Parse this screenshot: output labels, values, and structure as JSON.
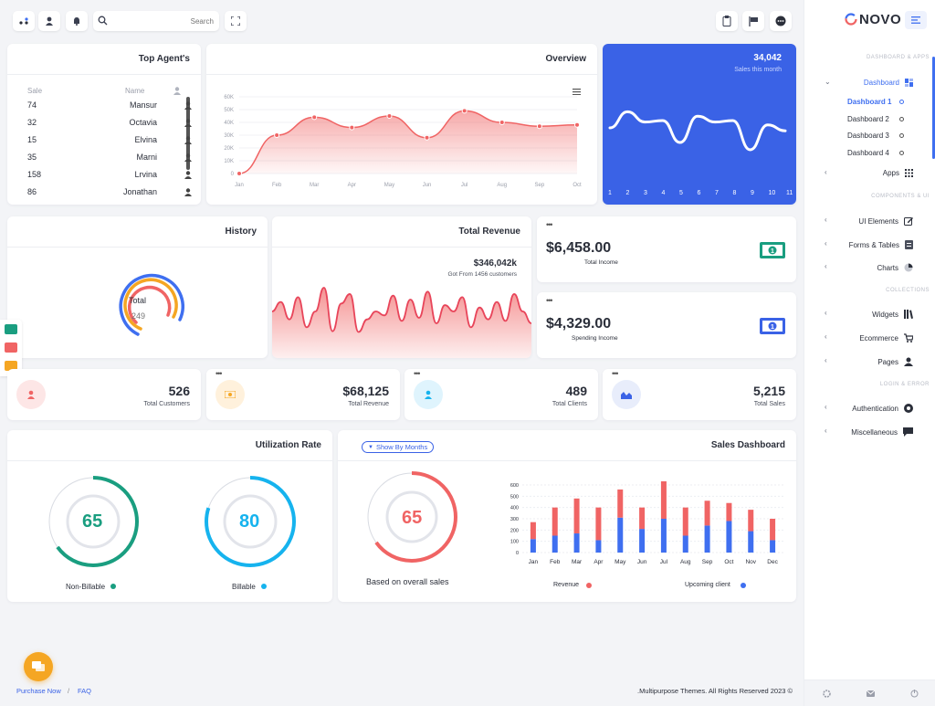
{
  "topbar": {
    "search_placeholder": "Search"
  },
  "brand": {
    "name": "NOVO"
  },
  "sidebar": {
    "groups": [
      "DASHBOARD & APPS",
      "COMPONENTS & UI",
      "COLLECTIONS",
      "LOGIN & ERROR"
    ],
    "dashboard": "Dashboard",
    "sub": [
      "Dashboard 1",
      "Dashboard 2",
      "Dashboard 3",
      "Dashboard 4"
    ],
    "items": [
      "Apps",
      "UI Elements",
      "Forms & Tables",
      "Charts",
      "Widgets",
      "Ecommerce",
      "Pages",
      "Authentication",
      "Miscellaneous"
    ]
  },
  "top_agents": {
    "title": "Top Agent's",
    "col_sale": "Sale",
    "col_name": "Name",
    "rows": [
      {
        "sale": "74",
        "name": "Mansur"
      },
      {
        "sale": "32",
        "name": "Octavia"
      },
      {
        "sale": "15",
        "name": "Elvina"
      },
      {
        "sale": "35",
        "name": "Marni"
      },
      {
        "sale": "158",
        "name": "Lrvina"
      },
      {
        "sale": "86",
        "name": "Jonathan"
      }
    ]
  },
  "overview": {
    "title": "Overview",
    "yticks": [
      "60K",
      "50K",
      "40K",
      "30K",
      "20K",
      "10K",
      "0"
    ],
    "months": [
      "Jan",
      "Feb",
      "Mar",
      "Apr",
      "May",
      "Jun",
      "Jul",
      "Aug",
      "Sep",
      "Oct"
    ]
  },
  "sales_month": {
    "value": "34,042",
    "label": "Sales this month",
    "xticks": [
      "1",
      "2",
      "3",
      "4",
      "5",
      "6",
      "7",
      "8",
      "9",
      "10",
      "11"
    ]
  },
  "history": {
    "title": "History",
    "center_label": "Total",
    "center_value": "249"
  },
  "total_revenue": {
    "title": "Total Revenue",
    "value": "$346,042k",
    "sub": "Got From 1456 customers"
  },
  "income": {
    "value": "$6,458.00",
    "label": "Total Income"
  },
  "spending": {
    "value": "$4,329.00",
    "label": "Spending Income"
  },
  "stats": [
    {
      "value": "526",
      "label": "Total Customers"
    },
    {
      "value": "$68,125",
      "label": "Total Revenue"
    },
    {
      "value": "489",
      "label": "Total Clients"
    },
    {
      "value": "5,215",
      "label": "Total Sales"
    }
  ],
  "utilization": {
    "title": "Utilization Rate",
    "a_value": "65",
    "a_label": "Non-Billable",
    "b_value": "80",
    "b_label": "Billable",
    "a_color": "#1a9e80",
    "b_color": "#16b3ee"
  },
  "sales_dashboard": {
    "title": "Sales Dashboard",
    "filter": "Show By Months",
    "gauge_value": "65",
    "gauge_label": "Based on overall sales",
    "legend_revenue": "Revenue",
    "legend_client": "Upcoming client"
  },
  "footer": {
    "purchase": "Purchase Now",
    "sep": "/",
    "faq": "FAQ",
    "copyright": ".Multipurpose Themes. All Rights Reserved 2023 ©"
  },
  "chart_data": {
    "type": "bar",
    "categories": [
      "Jan",
      "Feb",
      "Mar",
      "Apr",
      "May",
      "Jun",
      "Jul",
      "Aug",
      "Sep",
      "Oct",
      "Nov",
      "Dec"
    ],
    "ylim": [
      0,
      600
    ],
    "yticks": [
      "600",
      "500",
      "400",
      "300",
      "200",
      "100",
      "0"
    ],
    "series": [
      {
        "name": "Upcoming client",
        "color": "#3f6ff0",
        "values": [
          120,
          150,
          170,
          110,
          310,
          210,
          300,
          150,
          240,
          280,
          190,
          110
        ]
      },
      {
        "name": "Revenue",
        "color": "#f06464",
        "values": [
          150,
          250,
          310,
          290,
          250,
          190,
          370,
          250,
          220,
          160,
          190,
          190
        ]
      }
    ]
  }
}
